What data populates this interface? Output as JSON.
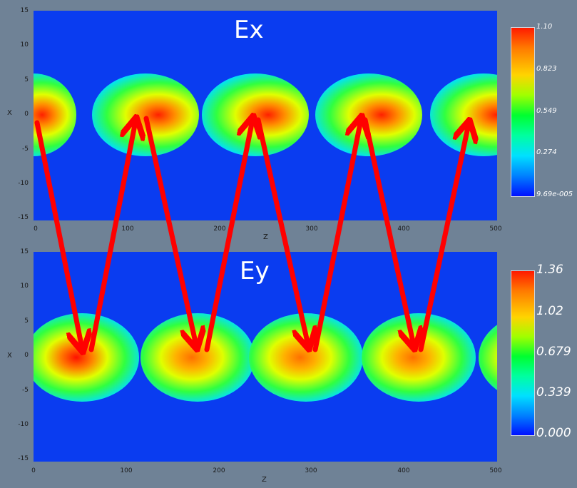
{
  "panels": [
    {
      "title": "Ex",
      "y_axis_label": "X",
      "x_axis_label": "Z",
      "y_ticks": [
        "15",
        "10",
        "5",
        "0",
        "-5",
        "-10",
        "-15"
      ],
      "x_ticks": [
        "0",
        "100",
        "200",
        "300",
        "400",
        "500"
      ],
      "colorbar_labels": [
        "1.10",
        "0.823",
        "0.549",
        "0.274",
        "9.69e-005"
      ]
    },
    {
      "title": "Ey",
      "y_axis_label": "X",
      "x_axis_label": "Z",
      "y_ticks": [
        "15",
        "10",
        "5",
        "0",
        "-5",
        "-10",
        "-15"
      ],
      "x_ticks": [
        "0",
        "100",
        "200",
        "300",
        "400",
        "500"
      ],
      "colorbar_labels": [
        "1.36",
        "1.02",
        "0.679",
        "0.339",
        "0.000"
      ]
    }
  ],
  "colors": {
    "background": "#6f8296",
    "field_low": "#0a3cf0",
    "arrow": "#ff0000"
  }
}
